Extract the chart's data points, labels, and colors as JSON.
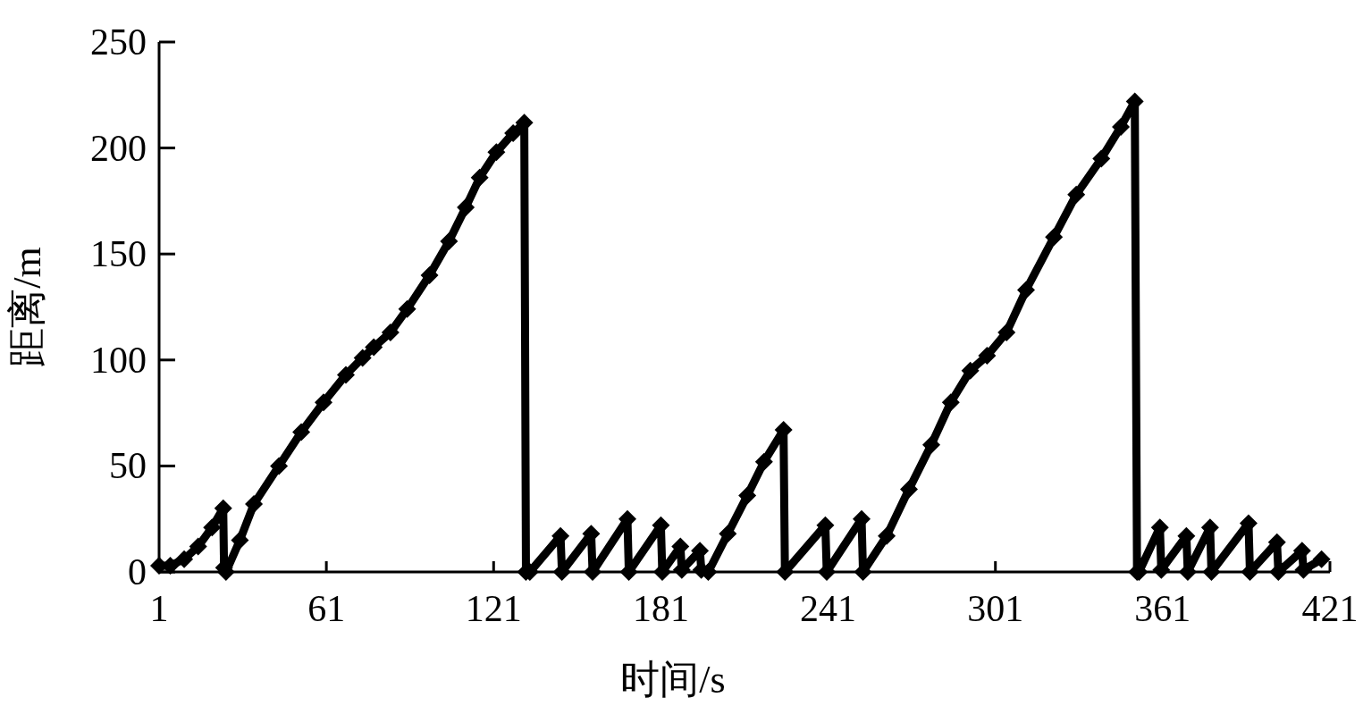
{
  "chart_data": {
    "type": "line",
    "xlabel": "时间/s",
    "ylabel": "距离/m",
    "xlim": [
      1,
      421
    ],
    "ylim": [
      0,
      250
    ],
    "xticks": [
      1,
      61,
      121,
      181,
      241,
      301,
      361,
      421
    ],
    "yticks": [
      0,
      50,
      100,
      150,
      200,
      250
    ],
    "color": "#000000",
    "marker": "diamond",
    "line_style": "solid",
    "x": [
      1,
      5,
      10,
      15,
      20,
      24,
      24.3,
      25,
      30,
      35,
      44,
      52,
      60,
      68,
      74,
      78,
      84,
      90,
      98,
      105,
      111,
      116,
      122,
      128,
      132,
      132.6,
      134,
      145,
      145.5,
      156,
      156.5,
      169,
      169.5,
      181,
      181.5,
      188,
      188.5,
      195,
      195.5,
      198,
      205,
      212,
      218,
      225,
      225.5,
      240,
      240.5,
      253,
      253.5,
      262,
      270,
      278,
      285,
      292,
      298,
      305,
      312,
      322,
      330,
      339,
      346,
      351,
      351.8,
      352.5,
      360,
      360.5,
      369.5,
      370,
      378,
      378.5,
      391.8,
      392.3,
      402,
      402.5,
      411,
      411.5,
      418
    ],
    "values": [
      3,
      3,
      6,
      12,
      21,
      30,
      2,
      0,
      15,
      32,
      50,
      66,
      80,
      93,
      101,
      106,
      113,
      124,
      140,
      156,
      172,
      186,
      198,
      207,
      212,
      0,
      0,
      17,
      0,
      18,
      0,
      25,
      0,
      22,
      0,
      12,
      1,
      10,
      1,
      0,
      18,
      36,
      52,
      67,
      0,
      22,
      0,
      25,
      0,
      17,
      39,
      60,
      80,
      95,
      102,
      113,
      133,
      158,
      178,
      195,
      210,
      222,
      0,
      0,
      21,
      1,
      17,
      0,
      21,
      0,
      23,
      0,
      14,
      0,
      10,
      1,
      6
    ]
  }
}
